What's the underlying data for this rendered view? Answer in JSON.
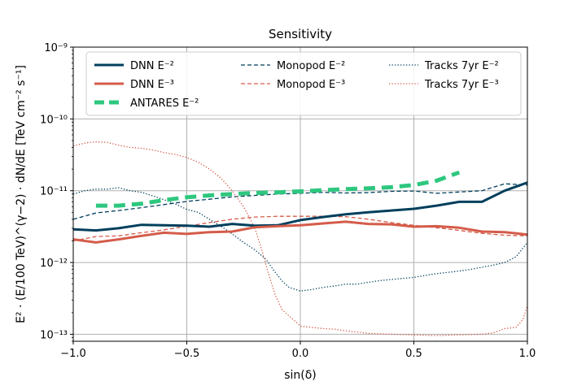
{
  "chart_data": {
    "type": "line",
    "title": "Sensitivity",
    "xlabel": "sin(δ)",
    "ylabel": "E² · (E/100 TeV)^(γ−2) · dN/dE  [TeV cm⁻² s⁻¹]",
    "xlim": [
      -1.0,
      1.0
    ],
    "ylim": [
      8e-14,
      1e-09
    ],
    "yscale": "log",
    "grid": true,
    "legend_position": "top",
    "x_ticks": [
      -1.0,
      -0.5,
      0.0,
      0.5,
      1.0
    ],
    "x_tick_labels": [
      "−1.0",
      "−0.5",
      "0.0",
      "0.5",
      "1.0"
    ],
    "y_ticks": [
      1e-13,
      1e-12,
      1e-11,
      1e-10,
      1e-09
    ],
    "y_tick_labels": [
      "10⁻¹³",
      "10⁻¹²",
      "10⁻¹¹",
      "10⁻¹⁰",
      "10⁻⁹"
    ],
    "series": [
      {
        "name": "DNN E⁻²",
        "color": "#003f5c",
        "style": "solid",
        "width": 3,
        "x": [
          -1.0,
          -0.9,
          -0.8,
          -0.7,
          -0.6,
          -0.5,
          -0.4,
          -0.3,
          -0.2,
          -0.1,
          0.0,
          0.1,
          0.2,
          0.3,
          0.4,
          0.5,
          0.6,
          0.7,
          0.8,
          0.9,
          1.0
        ],
        "y": [
          2.9e-12,
          2.8e-12,
          3e-12,
          3.35e-12,
          3.3e-12,
          3.25e-12,
          3.15e-12,
          3.45e-12,
          3.25e-12,
          3.3e-12,
          3.9e-12,
          4.3e-12,
          4.7e-12,
          5e-12,
          5.3e-12,
          5.6e-12,
          6.2e-12,
          7e-12,
          7e-12,
          1e-11,
          1.3e-11
        ]
      },
      {
        "name": "DNN E⁻³",
        "color": "#d45c4a",
        "style": "solid",
        "width": 3,
        "x": [
          -1.0,
          -0.9,
          -0.8,
          -0.7,
          -0.6,
          -0.5,
          -0.4,
          -0.3,
          -0.2,
          -0.1,
          0.0,
          0.1,
          0.2,
          0.3,
          0.4,
          0.5,
          0.6,
          0.7,
          0.8,
          0.9,
          1.0
        ],
        "y": [
          2.1e-12,
          1.9e-12,
          2.1e-12,
          2.35e-12,
          2.6e-12,
          2.5e-12,
          2.65e-12,
          2.7e-12,
          3.1e-12,
          3.2e-12,
          3.3e-12,
          3.5e-12,
          3.7e-12,
          3.45e-12,
          3.4e-12,
          3.15e-12,
          3.2e-12,
          3.05e-12,
          2.7e-12,
          2.65e-12,
          2.45e-12
        ]
      },
      {
        "name": "ANTARES E⁻²",
        "color": "#2ec77f",
        "style": "dashed-bold",
        "width": 5,
        "x": [
          -0.9,
          -0.8,
          -0.7,
          -0.6,
          -0.5,
          -0.4,
          -0.3,
          -0.2,
          -0.1,
          0.0,
          0.1,
          0.2,
          0.3,
          0.4,
          0.5,
          0.6,
          0.7
        ],
        "y": [
          6.2e-12,
          6.2e-12,
          6.6e-12,
          7.4e-12,
          8.1e-12,
          8.6e-12,
          9e-12,
          9.3e-12,
          9.5e-12,
          9.8e-12,
          1.02e-11,
          1.05e-11,
          1.08e-11,
          1.12e-11,
          1.2e-11,
          1.38e-11,
          1.8e-11
        ]
      },
      {
        "name": "Monopod E⁻²",
        "color": "#003f5c",
        "style": "dashed",
        "width": 1.3,
        "x": [
          -1.0,
          -0.9,
          -0.8,
          -0.7,
          -0.6,
          -0.5,
          -0.4,
          -0.3,
          -0.2,
          -0.1,
          0.0,
          0.1,
          0.2,
          0.3,
          0.4,
          0.5,
          0.6,
          0.7,
          0.8,
          0.9,
          1.0
        ],
        "y": [
          4e-12,
          4.9e-12,
          5.3e-12,
          5.8e-12,
          6.4e-12,
          7.1e-12,
          7.6e-12,
          8.2e-12,
          8.6e-12,
          9e-12,
          9.2e-12,
          9.5e-12,
          9.3e-12,
          9.4e-12,
          9.8e-12,
          9.9e-12,
          9.2e-12,
          9.6e-12,
          1e-11,
          1.25e-11,
          1.2e-11
        ]
      },
      {
        "name": "Monopod E⁻³",
        "color": "#d45c4a",
        "style": "dashed",
        "width": 1.3,
        "x": [
          -1.0,
          -0.9,
          -0.8,
          -0.7,
          -0.6,
          -0.5,
          -0.4,
          -0.3,
          -0.2,
          -0.1,
          0.0,
          0.1,
          0.2,
          0.3,
          0.4,
          0.5,
          0.6,
          0.7,
          0.8,
          0.9,
          1.0
        ],
        "y": [
          2e-12,
          2.3e-12,
          2.35e-12,
          2.6e-12,
          2.85e-12,
          3.2e-12,
          3.6e-12,
          4e-12,
          4.3e-12,
          4.4e-12,
          4.4e-12,
          4.4e-12,
          4.35e-12,
          4e-12,
          3.6e-12,
          3.3e-12,
          3.05e-12,
          2.8e-12,
          2.55e-12,
          2.4e-12,
          2.35e-12
        ]
      },
      {
        "name": "Tracks 7yr E⁻²",
        "color": "#003f5c",
        "style": "dotted",
        "width": 1.3,
        "x": [
          -1.0,
          -0.95,
          -0.9,
          -0.85,
          -0.8,
          -0.75,
          -0.7,
          -0.65,
          -0.6,
          -0.55,
          -0.5,
          -0.45,
          -0.4,
          -0.35,
          -0.3,
          -0.25,
          -0.2,
          -0.15,
          -0.12,
          -0.08,
          -0.05,
          0.0,
          0.05,
          0.1,
          0.15,
          0.2,
          0.25,
          0.3,
          0.35,
          0.4,
          0.45,
          0.5,
          0.55,
          0.6,
          0.65,
          0.7,
          0.75,
          0.8,
          0.85,
          0.9,
          0.95,
          1.0
        ],
        "y": [
          9e-12,
          1e-11,
          1.05e-11,
          1.05e-11,
          1.1e-11,
          1e-11,
          9.5e-12,
          8.5e-12,
          7.5e-12,
          6.5e-12,
          5.5e-12,
          5e-12,
          4e-12,
          3.2e-12,
          2.5e-12,
          1.9e-12,
          1.5e-12,
          1.1e-12,
          8e-13,
          5.5e-13,
          4.5e-13,
          4e-13,
          4.2e-13,
          4.5e-13,
          4.7e-13,
          5e-13,
          5e-13,
          5.3e-13,
          5.6e-13,
          5.8e-13,
          6e-13,
          6.2e-13,
          6.6e-13,
          7e-13,
          7.3e-13,
          7.6e-13,
          8e-13,
          8.6e-13,
          9.2e-13,
          1e-12,
          1.2e-12,
          1.9e-12
        ]
      },
      {
        "name": "Tracks 7yr E⁻³",
        "color": "#d45c4a",
        "style": "dotted",
        "width": 1.3,
        "x": [
          -1.0,
          -0.95,
          -0.9,
          -0.85,
          -0.8,
          -0.75,
          -0.7,
          -0.65,
          -0.6,
          -0.55,
          -0.5,
          -0.45,
          -0.4,
          -0.35,
          -0.3,
          -0.25,
          -0.2,
          -0.17,
          -0.14,
          -0.11,
          -0.08,
          -0.05,
          -0.02,
          0.0,
          0.05,
          0.1,
          0.15,
          0.2,
          0.3,
          0.4,
          0.5,
          0.6,
          0.7,
          0.8,
          0.85,
          0.9,
          0.95,
          0.98,
          1.0
        ],
        "y": [
          4.2e-11,
          4.6e-11,
          4.8e-11,
          4.7e-11,
          4.3e-11,
          4e-11,
          3.9e-11,
          3.7e-11,
          3.4e-11,
          3.2e-11,
          2.9e-11,
          2.5e-11,
          2e-11,
          1.5e-11,
          1e-11,
          6e-12,
          3e-12,
          1.5e-12,
          7e-13,
          3.5e-13,
          2.2e-13,
          1.8e-13,
          1.5e-13,
          1.3e-13,
          1.25e-13,
          1.2e-13,
          1.18e-13,
          1.12e-13,
          1.03e-13,
          1e-13,
          9.8e-14,
          9.6e-14,
          9.8e-14,
          1e-13,
          1.05e-13,
          1.2e-13,
          1.25e-13,
          1.6e-13,
          2.5e-13
        ]
      }
    ]
  }
}
